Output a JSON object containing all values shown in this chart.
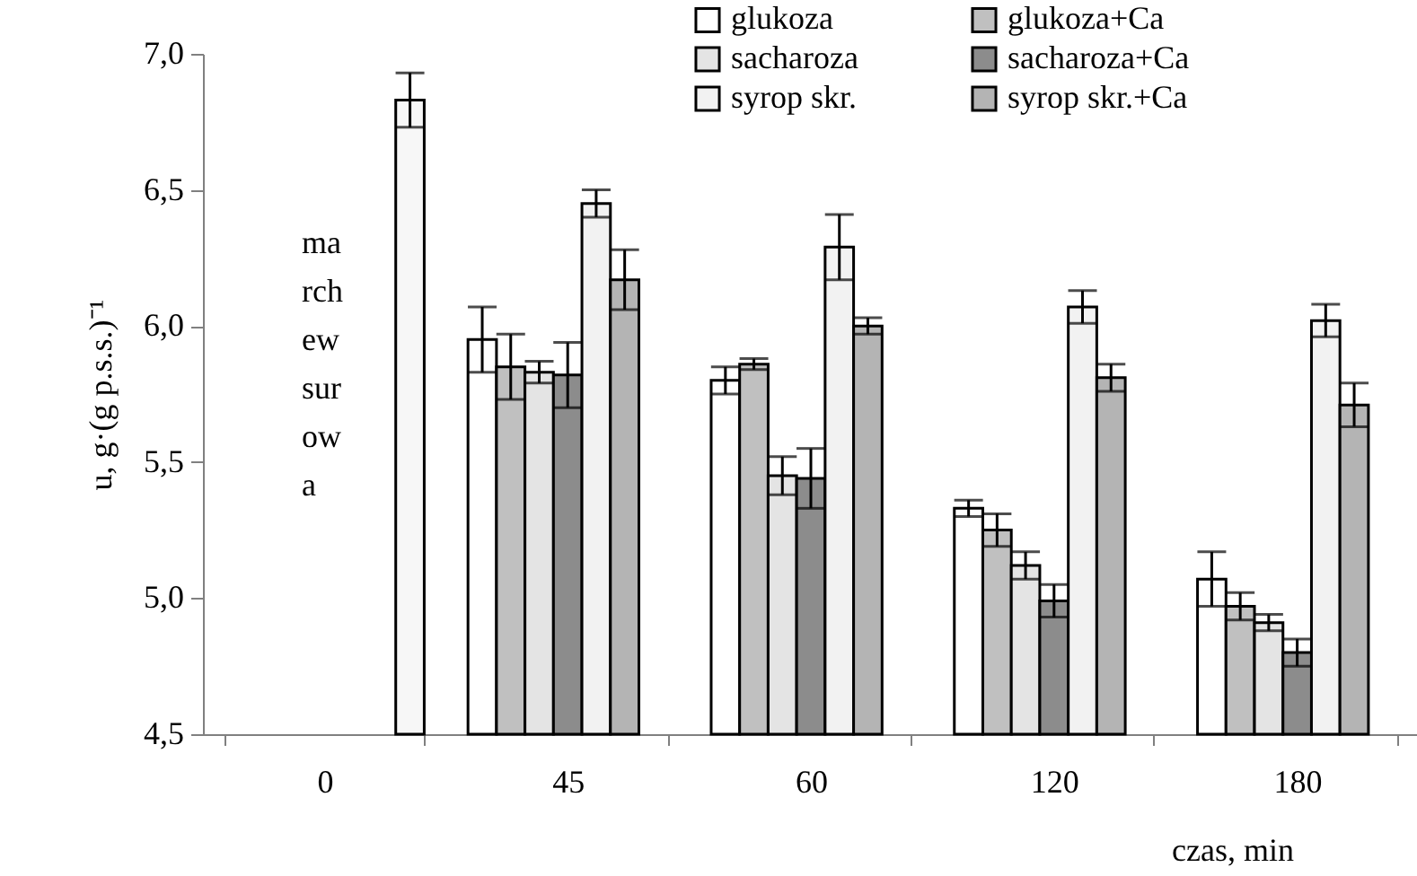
{
  "chart_data": {
    "type": "bar",
    "xlabel": "czas, min",
    "ylabel": "u, g·(g p.s.s.)⁻¹",
    "categories": [
      "0",
      "45",
      "60",
      "120",
      "180"
    ],
    "series": [
      {
        "name": "glukoza",
        "color": "#ffffff",
        "values": [
          null,
          5.95,
          5.8,
          5.33,
          5.07
        ],
        "errors": [
          null,
          0.12,
          0.05,
          0.03,
          0.1
        ]
      },
      {
        "name": "glukoza+Ca",
        "color": "#c0c0c0",
        "values": [
          null,
          5.85,
          5.86,
          5.25,
          4.97
        ],
        "errors": [
          null,
          0.12,
          0.02,
          0.06,
          0.05
        ]
      },
      {
        "name": "sacharoza",
        "color": "#e4e4e4",
        "values": [
          null,
          5.83,
          5.45,
          5.12,
          4.91
        ],
        "errors": [
          null,
          0.04,
          0.07,
          0.05,
          0.03
        ]
      },
      {
        "name": "sacharoza+Ca",
        "color": "#8c8c8c",
        "values": [
          null,
          5.82,
          5.44,
          4.99,
          4.8
        ],
        "errors": [
          null,
          0.12,
          0.11,
          0.06,
          0.05
        ]
      },
      {
        "name": "syrop skr.",
        "color": "#f2f2f2",
        "values": [
          null,
          6.45,
          6.29,
          6.07,
          6.02
        ],
        "errors": [
          null,
          0.05,
          0.12,
          0.06,
          0.06
        ]
      },
      {
        "name": "syrop skr.+Ca",
        "color": "#b4b4b4",
        "values": [
          null,
          6.17,
          6.0,
          5.81,
          5.71
        ],
        "errors": [
          null,
          0.11,
          0.03,
          0.05,
          0.08
        ]
      },
      {
        "color": "#f7f7f7",
        "values": [
          6.83,
          null,
          null,
          null,
          null
        ],
        "errors": [
          0.1,
          null,
          null,
          null,
          null
        ]
      }
    ],
    "annotations": [
      "ma rch ew sur ow a"
    ],
    "ylim": [
      4.5,
      7.0
    ],
    "yticks": [
      {
        "value": 4.5,
        "label": "4,5"
      },
      {
        "value": 5.0,
        "label": "5,0"
      },
      {
        "value": 5.5,
        "label": "5,5"
      },
      {
        "value": 6.0,
        "label": "6,0"
      },
      {
        "value": 6.5,
        "label": "6,5"
      },
      {
        "value": 7.0,
        "label": "7,0"
      }
    ],
    "legend": "top right",
    "grid": false
  }
}
